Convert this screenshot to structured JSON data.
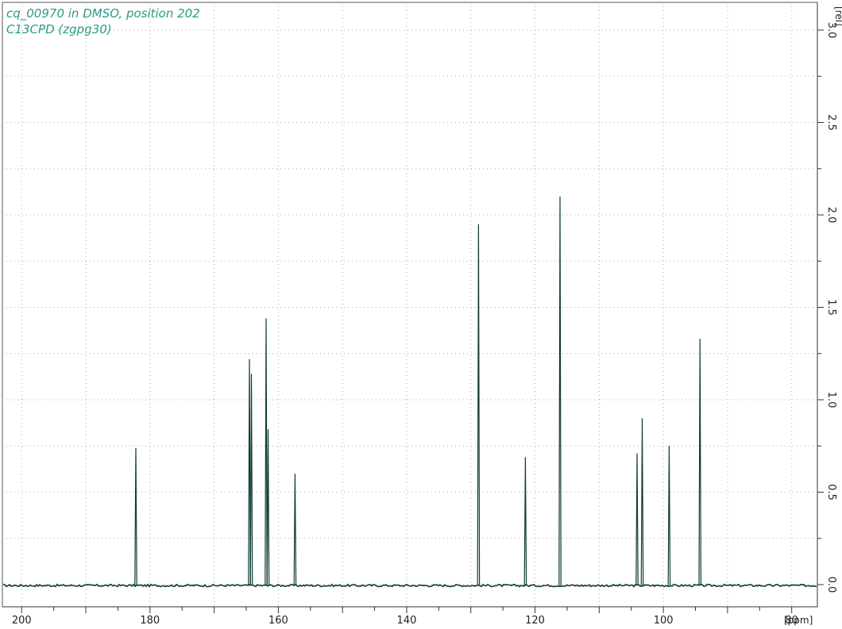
{
  "header": {
    "title_line1": "cq_00970 in DMSO, position 202",
    "title_line2": "C13CPD (zgpg30)"
  },
  "colors": {
    "title": "#2a9a86",
    "spectrum": "#0f3b36",
    "grid": "#aaaaaa",
    "axis": "#333333"
  },
  "chart_data": {
    "type": "line",
    "title": "cq_00970 in DMSO, position 202",
    "subtitle": "C13CPD (zgpg30)",
    "xlabel": "[ppm]",
    "ylabel": "[rel]",
    "xlim": [
      203,
      76
    ],
    "ylim": [
      -0.12,
      3.15
    ],
    "x_reversed": true,
    "grid": true,
    "x_ticks": [
      200,
      180,
      160,
      140,
      120,
      100,
      80
    ],
    "x_tick_labels": [
      "200",
      "180",
      "160",
      "140",
      "120",
      "100",
      "80"
    ],
    "y_ticks": [
      0.0,
      0.5,
      1.0,
      1.5,
      2.0,
      2.5,
      3.0
    ],
    "y_tick_labels": [
      "0.0",
      "0.5",
      "1.0",
      "1.5",
      "2.0",
      "2.5",
      "3.0"
    ],
    "baseline": -0.005,
    "peaks": [
      {
        "ppm": 182.2,
        "height": 0.74
      },
      {
        "ppm": 164.5,
        "height": 1.22
      },
      {
        "ppm": 164.2,
        "height": 1.14
      },
      {
        "ppm": 161.9,
        "height": 1.44
      },
      {
        "ppm": 161.6,
        "height": 0.84
      },
      {
        "ppm": 157.4,
        "height": 0.6
      },
      {
        "ppm": 128.8,
        "height": 1.95
      },
      {
        "ppm": 121.5,
        "height": 0.69
      },
      {
        "ppm": 116.1,
        "height": 2.1
      },
      {
        "ppm": 104.1,
        "height": 0.71
      },
      {
        "ppm": 103.3,
        "height": 0.9
      },
      {
        "ppm": 99.1,
        "height": 0.75
      },
      {
        "ppm": 94.3,
        "height": 1.33
      }
    ]
  }
}
